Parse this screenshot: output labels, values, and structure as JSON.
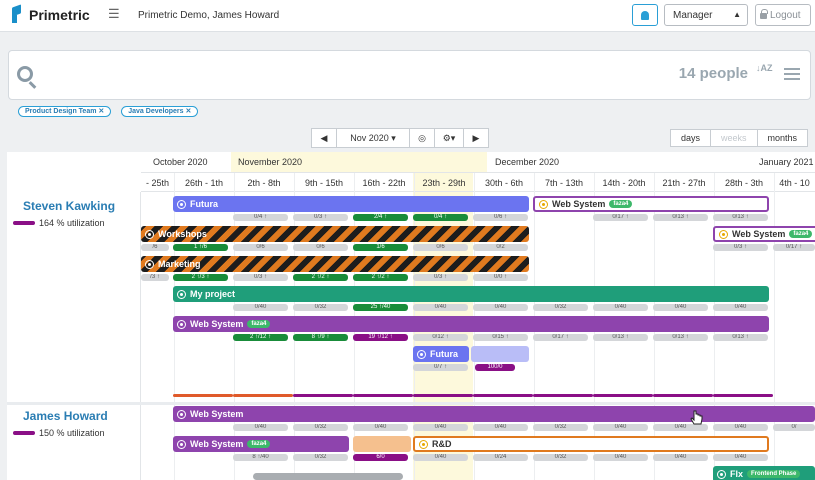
{
  "header": {
    "logo_text": "Primetric",
    "tenant": "Primetric Demo, James Howard",
    "role_selected": "Manager",
    "logout_label": "Logout"
  },
  "search": {
    "people_count": "14 people",
    "sort_label": "AZ",
    "chips": [
      "Product Design Team ✕",
      "Java Developers ✕"
    ]
  },
  "nav": {
    "prev": "◀",
    "period": "Nov 2020",
    "today": "◎",
    "settings": "⚙",
    "next": "▶",
    "views": [
      "days",
      "weeks",
      "months"
    ]
  },
  "timeline": {
    "months": [
      "October 2020",
      "November 2020",
      "December 2020",
      "January 2021"
    ],
    "weeks": [
      "- 25th",
      "26th - 1th",
      "2th - 8th",
      "9th - 15th",
      "16th - 22th",
      "23th - 29th",
      "30th - 6th",
      "7th - 13th",
      "14th - 20th",
      "21th - 27th",
      "28th - 3th",
      "4th - 10"
    ]
  },
  "people": [
    {
      "name": "Steven Kawking",
      "utilization": "164 % utilization",
      "bars": [
        {
          "label": "Futura",
          "tag": ""
        },
        {
          "label": "Web System",
          "tag": "faza4"
        },
        {
          "label": "Web System",
          "tag": "faza4"
        },
        {
          "label": "Workshops",
          "tag": ""
        },
        {
          "label": "Marketing",
          "tag": ""
        },
        {
          "label": "My project",
          "tag": ""
        },
        {
          "label": "Web System",
          "tag": "faza4"
        },
        {
          "label": "Futura",
          "tag": ""
        }
      ],
      "row1_cells": [
        "0/4 ↑",
        "0/3 ↑",
        "2/4 ↑",
        "0/4 ↑",
        "0/6 ↑",
        "0/17 ↑",
        "0/13 ↑",
        "0/13 ↑"
      ],
      "row2_cells": [
        "/6",
        "1 ↑/6",
        "0/6",
        "0/6",
        "1/6",
        "0/6",
        "0/2",
        "0/3 ↑",
        "0/17 ↑"
      ],
      "row3_cells": [
        "/3 ↑",
        "2 ↑/3 ↑",
        "0/3 ↑",
        "2 ↑/2 ↑",
        "2 ↑/2 ↑",
        "0/3 ↑",
        "0/0 ↑"
      ],
      "row4_cells": [
        "0/40",
        "0/32",
        "25 ↑/40",
        "0/40",
        "0/40",
        "0/32",
        "0/40",
        "0/40",
        "0/40",
        "0/32"
      ],
      "row5_cells": [
        "2 ↑/12 ↑",
        "8 ↑/9 ↑",
        "19 ↑/12 ↑",
        "0/12 ↑",
        "0/15 ↑",
        "0/17 ↑",
        "0/13 ↑",
        "0/13 ↑",
        "0/13 ↑"
      ],
      "row6_cells": [
        "0/7 ↑",
        "100/0"
      ]
    },
    {
      "name": "James Howard",
      "utilization": "150 % utilization",
      "bars": [
        {
          "label": "Web System",
          "tag": ""
        },
        {
          "label": "Web System",
          "tag": "faza4"
        },
        {
          "label": "R&D",
          "tag": ""
        },
        {
          "label": "Flx",
          "tag": "Frontend Phase"
        }
      ],
      "row1_cells": [
        "0/40",
        "0/32",
        "0/40",
        "0/40",
        "0/40",
        "0/32",
        "0/40",
        "0/40",
        "0/40",
        "0/"
      ],
      "row2_cells": [
        "8 ↑/40",
        "0/32",
        "6/0",
        "0/40",
        "0/24",
        "0/32",
        "0/40",
        "0/40",
        "0/40"
      ]
    }
  ],
  "colors": {
    "accent": "#2a9fd6",
    "periwinkle": "#6b74f0",
    "purple": "#8e44ad",
    "teal": "#1f9e7a",
    "orange_outline": "#e07a1f",
    "util": "#8a0f86"
  }
}
